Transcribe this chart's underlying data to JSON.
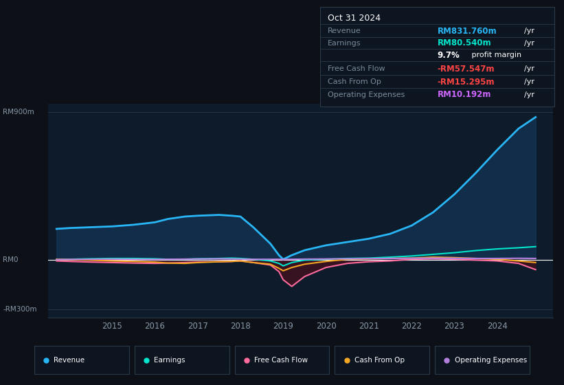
{
  "background_color": "#0d1117",
  "plot_bg_color": "#0d1b2a",
  "grid_color": "#2a3a4a",
  "ylim": [
    -350,
    950
  ],
  "tooltip": {
    "date": "Oct 31 2024",
    "revenue_label": "Revenue",
    "revenue_value": "RM831.760m",
    "revenue_color": "#29b6f6",
    "earnings_label": "Earnings",
    "earnings_value": "RM80.540m",
    "earnings_color": "#00e5cc",
    "fcf_label": "Free Cash Flow",
    "fcf_value": "-RM57.547m",
    "fcf_color": "#ff4444",
    "cfo_label": "Cash From Op",
    "cfo_value": "-RM15.295m",
    "cfo_color": "#ff4444",
    "opex_label": "Operating Expenses",
    "opex_value": "RM10.192m",
    "opex_color": "#cc66ff",
    "label_color": "#7a8a9a",
    "bg": "#0d1520",
    "border_color": "#2a3a4a"
  },
  "legend": [
    {
      "label": "Revenue",
      "color": "#29b6f6"
    },
    {
      "label": "Earnings",
      "color": "#00e5cc"
    },
    {
      "label": "Free Cash Flow",
      "color": "#ff6b9d"
    },
    {
      "label": "Cash From Op",
      "color": "#f5a623"
    },
    {
      "label": "Operating Expenses",
      "color": "#b37fdd"
    }
  ],
  "series": {
    "years_float": [
      2013.7,
      2014.0,
      2014.5,
      2015.0,
      2015.5,
      2016.0,
      2016.3,
      2016.7,
      2017.0,
      2017.5,
      2017.8,
      2018.0,
      2018.3,
      2018.7,
      2018.9,
      2019.0,
      2019.2,
      2019.5,
      2020.0,
      2020.5,
      2021.0,
      2021.5,
      2022.0,
      2022.5,
      2023.0,
      2023.5,
      2024.0,
      2024.5,
      2024.9
    ],
    "revenue": [
      190,
      195,
      200,
      205,
      215,
      230,
      250,
      265,
      270,
      275,
      270,
      265,
      200,
      100,
      30,
      5,
      30,
      60,
      90,
      110,
      130,
      160,
      210,
      290,
      400,
      530,
      670,
      800,
      870
    ],
    "earnings": [
      5,
      5,
      8,
      10,
      10,
      8,
      5,
      5,
      8,
      10,
      12,
      10,
      5,
      -5,
      -20,
      -35,
      -15,
      0,
      5,
      10,
      12,
      18,
      25,
      35,
      45,
      58,
      68,
      75,
      82
    ],
    "fcf": [
      -5,
      -8,
      -12,
      -15,
      -18,
      -20,
      -18,
      -15,
      -12,
      -10,
      -8,
      -5,
      -15,
      -30,
      -70,
      -120,
      -160,
      -100,
      -45,
      -20,
      -10,
      -5,
      5,
      8,
      5,
      0,
      -5,
      -20,
      -58
    ],
    "cfo": [
      5,
      3,
      0,
      -5,
      -8,
      -12,
      -18,
      -20,
      -15,
      -10,
      -8,
      -5,
      -15,
      -25,
      -50,
      -65,
      -45,
      -25,
      -8,
      5,
      8,
      10,
      12,
      18,
      15,
      10,
      5,
      -5,
      -15
    ],
    "opex": [
      3,
      4,
      5,
      6,
      5,
      4,
      5,
      6,
      7,
      8,
      7,
      6,
      5,
      5,
      5,
      4,
      5,
      6,
      7,
      8,
      9,
      10,
      11,
      12,
      11,
      10,
      10,
      11,
      10
    ]
  }
}
